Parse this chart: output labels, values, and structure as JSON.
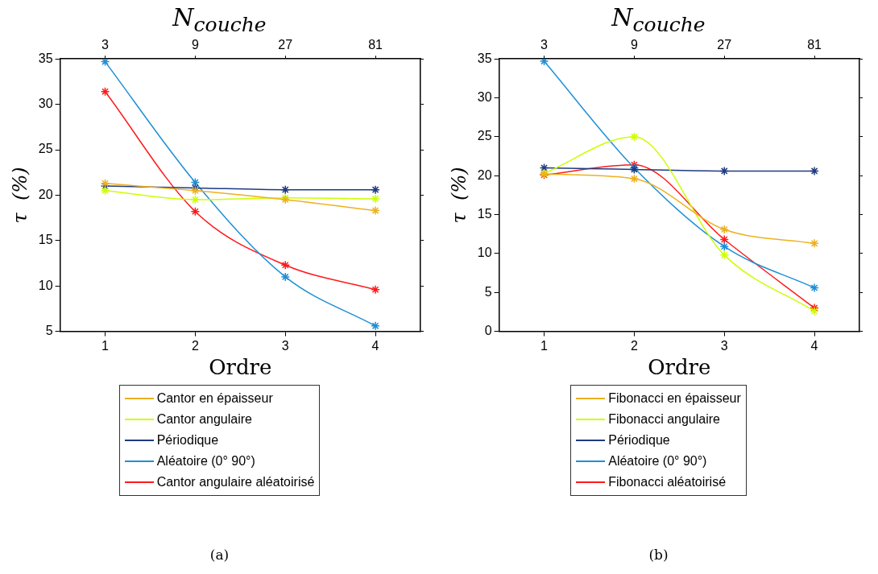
{
  "chart_data": [
    {
      "type": "line",
      "x2label": "N$_{couche}$",
      "xlabel": "Ordre",
      "ylabel": "τ  (%)",
      "x": [
        1,
        2,
        3,
        4
      ],
      "xlim": [
        0.5,
        4.5
      ],
      "xticks": [
        1,
        2,
        3,
        4
      ],
      "x2lim": [
        1.732,
        140.3
      ],
      "x2ticks": [
        3,
        9,
        27,
        81
      ],
      "log": "x2",
      "ylim": [
        5,
        35
      ],
      "yticks": [
        5,
        10,
        15,
        20,
        25,
        30,
        35
      ],
      "grid": false,
      "legend": "bottom",
      "marker": "cross",
      "line_style": "solid",
      "annotations": [
        "(a)"
      ],
      "series": [
        {
          "name": "Cantor en épaisseur",
          "color": "#edb120",
          "values": [
            21.3,
            20.5,
            19.5,
            18.3
          ]
        },
        {
          "name": "Cantor angulaire",
          "color": "#ccff00",
          "values": [
            20.5,
            19.5,
            19.7,
            19.6
          ]
        },
        {
          "name": "Périodique",
          "color": "#1f3a80",
          "values": [
            21.0,
            20.8,
            20.6,
            20.6
          ]
        },
        {
          "name": "Aléatoire (0° 90°)",
          "color": "#1f8fd6",
          "values": [
            34.7,
            21.4,
            11.0,
            5.6
          ]
        },
        {
          "name": "Cantor angulaire aléatoirisé",
          "color": "#ff1a1a",
          "values": [
            31.4,
            18.2,
            12.3,
            9.6
          ]
        }
      ]
    },
    {
      "type": "line",
      "x2label": "N$_{couche}$",
      "xlabel": "Ordre",
      "ylabel": "τ  (%)",
      "x": [
        1,
        2,
        3,
        4
      ],
      "xlim": [
        0.5,
        4.5
      ],
      "xticks": [
        1,
        2,
        3,
        4
      ],
      "x2lim": [
        1.732,
        140.3
      ],
      "x2ticks": [
        3,
        9,
        27,
        81
      ],
      "log": "x2",
      "ylim": [
        0,
        35
      ],
      "yticks": [
        0,
        5,
        10,
        15,
        20,
        25,
        30,
        35
      ],
      "grid": false,
      "legend": "bottom",
      "marker": "cross",
      "line_style": "solid",
      "annotations": [
        "(b)"
      ],
      "series": [
        {
          "name": "Fibonacci en épaisseur",
          "color": "#edb120",
          "values": [
            20.2,
            19.6,
            13.1,
            11.3
          ]
        },
        {
          "name": "Fibonacci angulaire",
          "color": "#ccff00",
          "values": [
            20.3,
            25.0,
            9.8,
            2.6
          ]
        },
        {
          "name": "Périodique",
          "color": "#1f3a80",
          "values": [
            21.0,
            20.8,
            20.6,
            20.6
          ]
        },
        {
          "name": "Aléatoire (0° 90°)",
          "color": "#1f8fd6",
          "values": [
            34.7,
            21.0,
            10.9,
            5.6
          ]
        },
        {
          "name": "Fibonacci aléatoirisé",
          "color": "#ff1a1a",
          "values": [
            20.1,
            21.4,
            11.8,
            3.0
          ]
        }
      ]
    }
  ]
}
